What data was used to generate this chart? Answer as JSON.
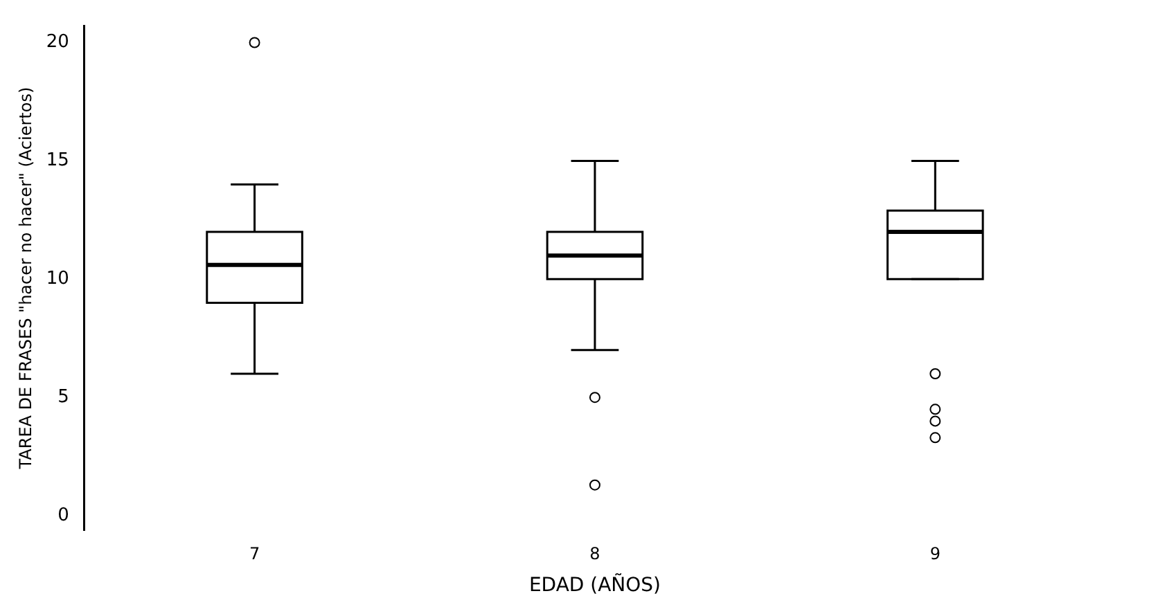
{
  "chart_data": {
    "type": "box",
    "xlabel": "EDAD (AÑOS)",
    "ylabel": "TAREA DE FRASES \"hacer no hacer\" (Aciertos)",
    "categories": [
      "7",
      "8",
      "9"
    ],
    "boxes": [
      {
        "low": 6,
        "q1": 9,
        "median": 10.6,
        "q3": 12,
        "high": 14,
        "outliers": [
          20
        ]
      },
      {
        "low": 7,
        "q1": 10,
        "median": 11,
        "q3": 12,
        "high": 15,
        "outliers": [
          5,
          1.3
        ]
      },
      {
        "low": 10,
        "q1": 10,
        "median": 12,
        "q3": 12.9,
        "high": 15,
        "outliers": [
          6,
          4.5,
          4,
          3.3
        ]
      }
    ],
    "color": "#000000",
    "marker": "circle",
    "ylim": [
      -0.6,
      20.7
    ],
    "yticks": [
      0,
      5,
      10,
      15,
      20
    ],
    "grid": false,
    "legend": false
  }
}
